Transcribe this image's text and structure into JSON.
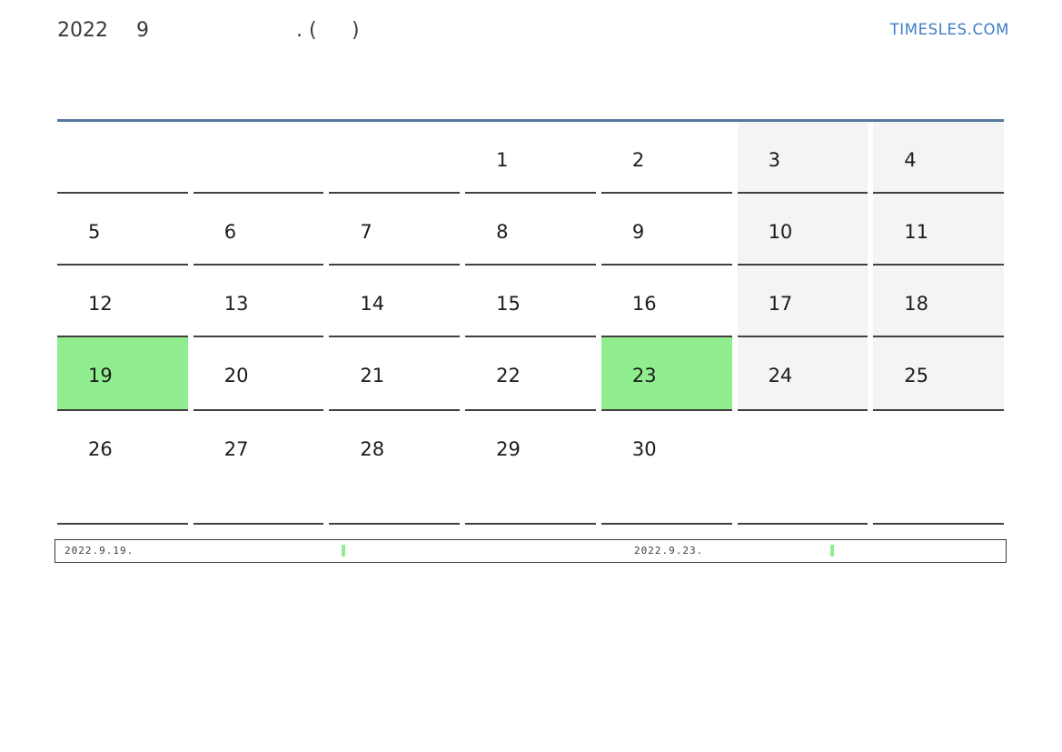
{
  "title": {
    "year": "2022",
    "month": "9",
    "punctuation_left": ". (",
    "punctuation_right": ")"
  },
  "logo": {
    "text": "TIMESLES.COM",
    "color": "#3e7cc7"
  },
  "calendar": {
    "highlight_color": "#90ee90",
    "weekend_color": "#f4f4f4",
    "top_line_color": "#54789f",
    "grid_line_color": "#414141",
    "weeks": [
      {
        "days": [
          {
            "label": "",
            "bg": "plain"
          },
          {
            "label": "",
            "bg": "plain"
          },
          {
            "label": "",
            "bg": "plain"
          },
          {
            "label": "1",
            "bg": "plain"
          },
          {
            "label": "2",
            "bg": "plain"
          },
          {
            "label": "3",
            "bg": "weekend"
          },
          {
            "label": "4",
            "bg": "weekend"
          }
        ]
      },
      {
        "days": [
          {
            "label": "5",
            "bg": "plain"
          },
          {
            "label": "6",
            "bg": "plain"
          },
          {
            "label": "7",
            "bg": "plain"
          },
          {
            "label": "8",
            "bg": "plain"
          },
          {
            "label": "9",
            "bg": "plain"
          },
          {
            "label": "10",
            "bg": "weekend"
          },
          {
            "label": "11",
            "bg": "weekend"
          }
        ]
      },
      {
        "days": [
          {
            "label": "12",
            "bg": "plain"
          },
          {
            "label": "13",
            "bg": "plain"
          },
          {
            "label": "14",
            "bg": "plain"
          },
          {
            "label": "15",
            "bg": "plain"
          },
          {
            "label": "16",
            "bg": "plain"
          },
          {
            "label": "17",
            "bg": "weekend"
          },
          {
            "label": "18",
            "bg": "weekend"
          }
        ]
      },
      {
        "days": [
          {
            "label": "19",
            "bg": "highlight"
          },
          {
            "label": "20",
            "bg": "plain"
          },
          {
            "label": "21",
            "bg": "plain"
          },
          {
            "label": "22",
            "bg": "plain"
          },
          {
            "label": "23",
            "bg": "highlight"
          },
          {
            "label": "24",
            "bg": "weekend"
          },
          {
            "label": "25",
            "bg": "weekend"
          }
        ]
      },
      {
        "days": [
          {
            "label": "26",
            "bg": "plain"
          },
          {
            "label": "27",
            "bg": "plain"
          },
          {
            "label": "28",
            "bg": "plain"
          },
          {
            "label": "29",
            "bg": "plain"
          },
          {
            "label": "30",
            "bg": "plain"
          },
          {
            "label": "",
            "bg": "plain"
          },
          {
            "label": "",
            "bg": "plain"
          }
        ]
      }
    ]
  },
  "legend": {
    "items": [
      {
        "label": "2022.9.19.",
        "swatch_color": "#90ee90"
      },
      {
        "label": "2022.9.23.",
        "swatch_color": "#90ee90"
      }
    ]
  }
}
